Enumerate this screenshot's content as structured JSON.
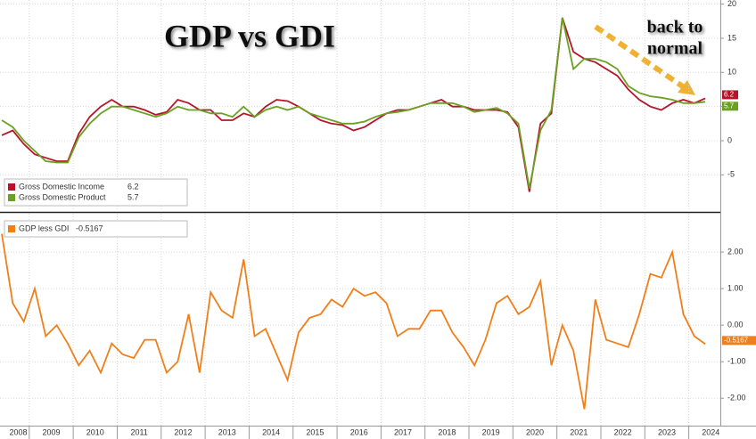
{
  "chart_data": [
    {
      "type": "line",
      "title": "GDP vs GDI",
      "annotations": [
        "back to",
        "normal"
      ],
      "categories": [
        "2008",
        null,
        null,
        "2009",
        null,
        null,
        null,
        "2010",
        null,
        null,
        null,
        "2011",
        null,
        null,
        null,
        "2012",
        null,
        null,
        null,
        "2013",
        null,
        null,
        null,
        "2014",
        null,
        null,
        null,
        "2015",
        null,
        null,
        null,
        "2016",
        null,
        null,
        null,
        "2017",
        null,
        null,
        null,
        "2018",
        null,
        null,
        null,
        "2019",
        null,
        null,
        null,
        "2020",
        null,
        null,
        null,
        "2021",
        null,
        null,
        null,
        "2022",
        null,
        null,
        null,
        "2023",
        null,
        null,
        null,
        "2024",
        null
      ],
      "series": [
        {
          "name": "Gross Domestic Income",
          "color": "#b5152b",
          "values": [
            0.8,
            1.5,
            -0.5,
            -2.0,
            -2.5,
            -3.0,
            -3.0,
            1.0,
            3.5,
            5.0,
            6.0,
            5.0,
            5.0,
            4.5,
            3.8,
            4.2,
            6.0,
            5.5,
            4.5,
            4.5,
            3.0,
            3.0,
            4.0,
            3.5,
            5.0,
            6.0,
            5.8,
            5.0,
            4.0,
            3.0,
            2.5,
            2.3,
            1.5,
            2.0,
            3.0,
            4.0,
            4.5,
            4.5,
            5.0,
            5.5,
            6.0,
            5.0,
            5.0,
            4.5,
            4.5,
            4.5,
            4.2,
            2.0,
            -7.5,
            2.5,
            4.0,
            18.0,
            13.0,
            12.0,
            11.5,
            10.5,
            9.5,
            7.5,
            6.0,
            5.0,
            4.5,
            5.5,
            6.0,
            5.5,
            6.2
          ]
        },
        {
          "name": "Gross Domestic Product",
          "color": "#6aa121",
          "values": [
            3.0,
            2.0,
            0.0,
            -1.5,
            -3.0,
            -3.2,
            -3.2,
            0.5,
            2.5,
            4.0,
            5.0,
            5.0,
            4.5,
            4.0,
            3.5,
            4.0,
            5.0,
            4.5,
            4.5,
            4.0,
            4.0,
            3.5,
            5.0,
            3.5,
            4.5,
            5.0,
            4.5,
            5.0,
            4.0,
            3.5,
            3.0,
            2.5,
            2.5,
            2.8,
            3.5,
            4.0,
            4.2,
            4.5,
            5.0,
            5.5,
            5.5,
            5.5,
            5.0,
            4.2,
            4.5,
            4.8,
            4.0,
            2.5,
            -7.0,
            1.5,
            4.5,
            18.0,
            10.5,
            12.0,
            12.0,
            11.5,
            10.5,
            8.0,
            7.0,
            6.5,
            6.3,
            6.0,
            5.5,
            5.5,
            5.7
          ]
        }
      ],
      "ylim": [
        -10.3,
        20.6
      ],
      "yticks": [
        -5,
        0,
        5,
        10,
        15,
        20
      ],
      "grid": true,
      "legend": "bottom-left"
    },
    {
      "type": "line",
      "categories": [
        "2008",
        null,
        null,
        "2009",
        null,
        null,
        null,
        "2010",
        null,
        null,
        null,
        "2011",
        null,
        null,
        null,
        "2012",
        null,
        null,
        null,
        "2013",
        null,
        null,
        null,
        "2014",
        null,
        null,
        null,
        "2015",
        null,
        null,
        null,
        "2016",
        null,
        null,
        null,
        "2017",
        null,
        null,
        null,
        "2018",
        null,
        null,
        null,
        "2019",
        null,
        null,
        null,
        "2020",
        null,
        null,
        null,
        "2021",
        null,
        null,
        null,
        "2022",
        null,
        null,
        null,
        "2023",
        null,
        null,
        null,
        "2024",
        null
      ],
      "series": [
        {
          "name": "GDP less GDI",
          "color": "#f07f1a",
          "values": [
            2.5,
            0.6,
            0.1,
            1.0,
            -0.3,
            0.0,
            -0.5,
            -1.1,
            -0.7,
            -1.3,
            -0.5,
            -0.8,
            -0.9,
            -0.4,
            -0.4,
            -1.3,
            -1.0,
            0.3,
            -1.3,
            0.9,
            0.4,
            0.2,
            1.8,
            -0.3,
            -0.1,
            -0.8,
            -1.5,
            -0.2,
            0.2,
            0.3,
            0.7,
            0.5,
            1.0,
            0.8,
            0.9,
            0.6,
            -0.3,
            -0.1,
            -0.1,
            0.4,
            0.4,
            -0.2,
            -0.6,
            -1.1,
            -0.4,
            0.6,
            0.8,
            0.3,
            0.5,
            1.2,
            -1.1,
            0.0,
            -0.7,
            -2.3,
            0.7,
            -0.4,
            -0.5,
            -0.6,
            0.3,
            1.4,
            1.3,
            2.0,
            0.3,
            -0.3,
            -0.5167
          ]
        }
      ],
      "ylim": [
        -2.75,
        3.05
      ],
      "yticks": [
        {
          "value": -2,
          "label": "-2.00"
        },
        {
          "value": -1,
          "label": "-1.00"
        },
        {
          "value": 0,
          "label": "0.00"
        },
        {
          "value": 1,
          "label": "1.00"
        },
        {
          "value": 2,
          "label": "2.00"
        }
      ],
      "grid": true,
      "legend": "top-left"
    }
  ]
}
